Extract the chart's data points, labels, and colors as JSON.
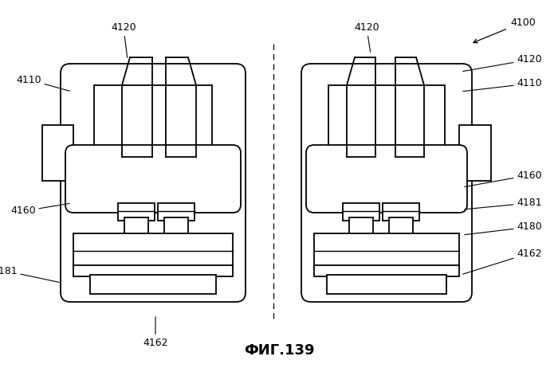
{
  "title": "ФИГ.139",
  "background_color": "#ffffff",
  "line_color": "#000000",
  "title_fontsize": 13,
  "label_fontsize": 9,
  "fig_width": 7.0,
  "fig_height": 4.62,
  "dpi": 100
}
